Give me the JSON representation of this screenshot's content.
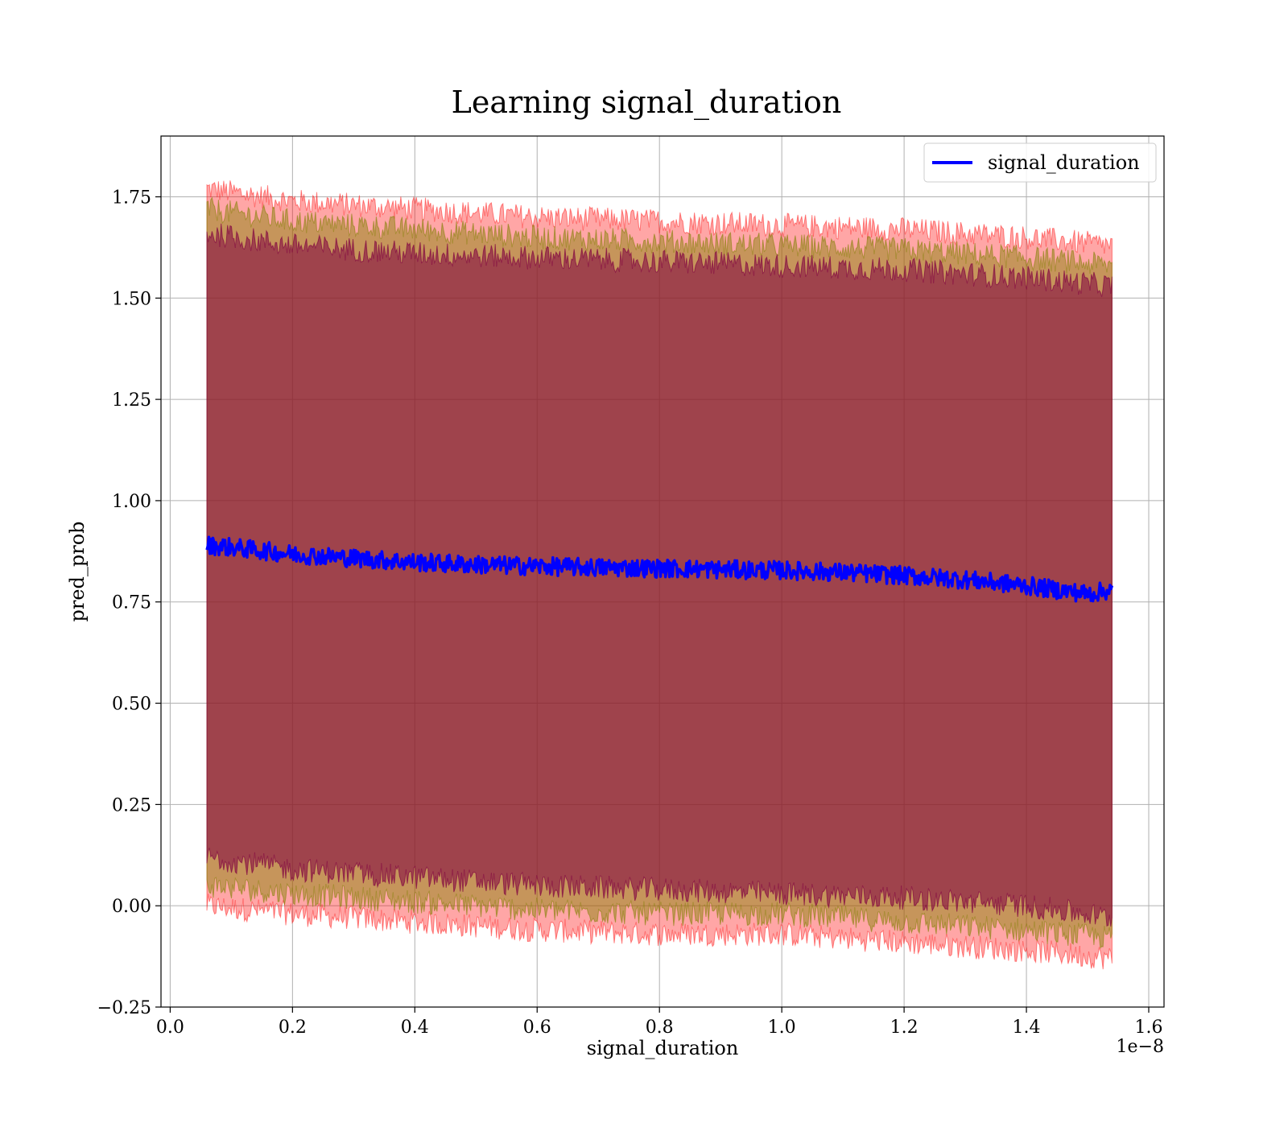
{
  "chart_data": {
    "type": "line",
    "title": "Learning signal_duration",
    "xlabel": "signal_duration",
    "ylabel": "pred_prob",
    "x_offset_text": "1e−8",
    "xlim": [
      -0.015,
      1.625
    ],
    "ylim": [
      -0.25,
      1.9
    ],
    "x_ticks": [
      0.0,
      0.2,
      0.4,
      0.6,
      0.8,
      1.0,
      1.2,
      1.4,
      1.6
    ],
    "x_tick_labels": [
      "0.0",
      "0.2",
      "0.4",
      "0.6",
      "0.8",
      "1.0",
      "1.2",
      "1.4",
      "1.6"
    ],
    "y_ticks": [
      -0.25,
      0.0,
      0.25,
      0.5,
      0.75,
      1.0,
      1.25,
      1.5,
      1.75
    ],
    "y_tick_labels": [
      "−0.25",
      "0.00",
      "0.25",
      "0.50",
      "0.75",
      "1.00",
      "1.25",
      "1.50",
      "1.75"
    ],
    "grid": true,
    "legend_position": "top-right",
    "series": [
      {
        "name": "signal_duration",
        "color": "#0000ff",
        "x": [
          0.06,
          0.1,
          0.2,
          0.3,
          0.4,
          0.5,
          0.6,
          0.7,
          0.8,
          0.9,
          1.0,
          1.1,
          1.2,
          1.3,
          1.4,
          1.5,
          1.54
        ],
        "y": [
          0.89,
          0.885,
          0.868,
          0.858,
          0.848,
          0.842,
          0.838,
          0.835,
          0.833,
          0.83,
          0.828,
          0.823,
          0.815,
          0.805,
          0.79,
          0.77,
          0.78
        ]
      }
    ],
    "bands": [
      {
        "color": "#ff0000",
        "opacity": 0.35,
        "x": [
          0.06,
          0.2,
          0.4,
          0.6,
          0.8,
          1.0,
          1.2,
          1.4,
          1.54
        ],
        "upper": [
          1.77,
          1.74,
          1.72,
          1.7,
          1.69,
          1.68,
          1.67,
          1.65,
          1.63
        ],
        "lower": [
          0.0,
          -0.02,
          -0.04,
          -0.06,
          -0.07,
          -0.07,
          -0.09,
          -0.11,
          -0.13
        ]
      },
      {
        "color": "#808000",
        "opacity": 0.45,
        "x": [
          0.06,
          0.2,
          0.4,
          0.6,
          0.8,
          1.0,
          1.2,
          1.4,
          1.54
        ],
        "upper": [
          1.72,
          1.69,
          1.67,
          1.65,
          1.64,
          1.63,
          1.62,
          1.6,
          1.58
        ],
        "lower": [
          0.05,
          0.03,
          0.01,
          -0.01,
          -0.02,
          -0.02,
          -0.04,
          -0.06,
          -0.08
        ]
      },
      {
        "color": "#800040",
        "opacity": 0.55,
        "x": [
          0.06,
          0.2,
          0.4,
          0.6,
          0.8,
          1.0,
          1.2,
          1.4,
          1.54
        ],
        "upper": [
          1.66,
          1.63,
          1.61,
          1.6,
          1.59,
          1.58,
          1.57,
          1.55,
          1.53
        ],
        "lower": [
          0.12,
          0.09,
          0.07,
          0.05,
          0.04,
          0.03,
          0.02,
          0.0,
          -0.03
        ]
      }
    ]
  }
}
